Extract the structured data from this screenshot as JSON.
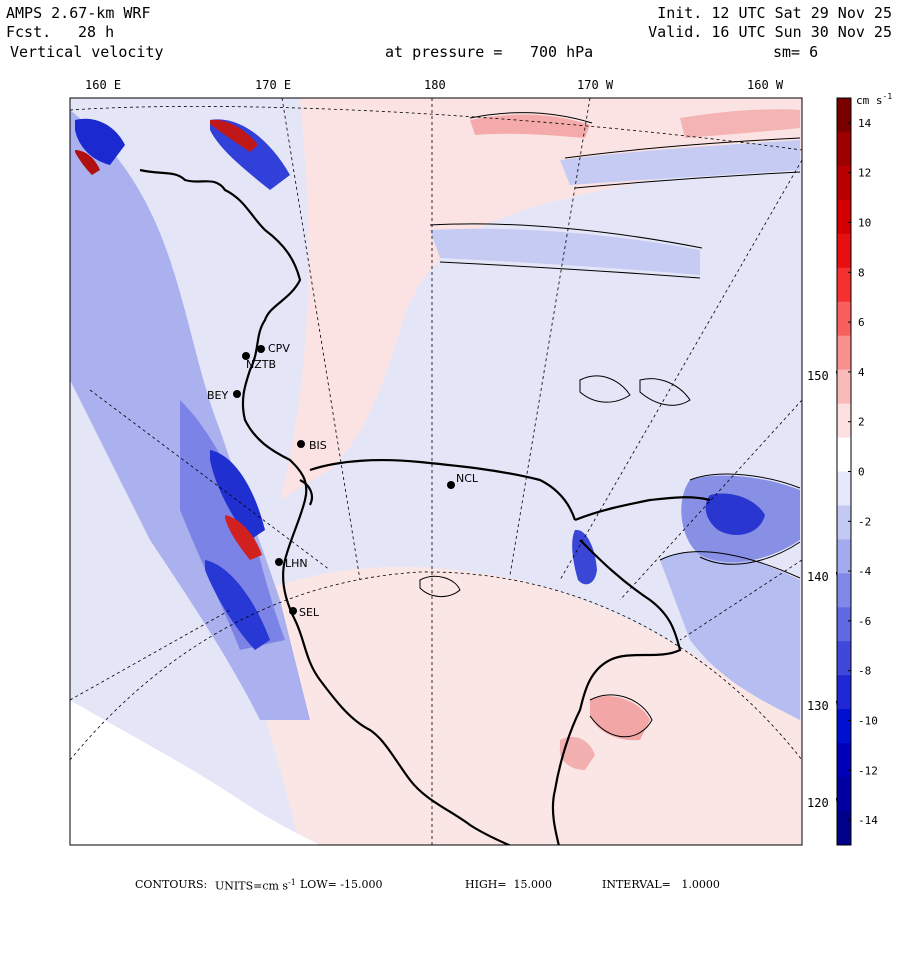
{
  "header": {
    "model": "AMPS 2.67-km WRF",
    "forecast_label": "Fcst.",
    "forecast_value": "28 h",
    "field": "Vertical velocity",
    "init": "Init. 12 UTC Sat 29 Nov 25",
    "valid": "Valid. 16 UTC Sun 30 Nov 25",
    "pressure_label": "at pressure =",
    "pressure_value": "700 hPa",
    "smoothing": "sm= 6"
  },
  "map": {
    "top_longitudes": [
      "160 E",
      "170 E",
      "180",
      "170 W",
      "160 W"
    ],
    "right_longitudes": [
      "150 W",
      "140 W",
      "130 W",
      "120 W"
    ],
    "stations": [
      "CPV",
      "NZTB",
      "BEY",
      "BIS",
      "NCL",
      "LHN",
      "SEL"
    ],
    "positive_color": "#d92020",
    "negative_color": "#2040d0",
    "background_color": "#e4e6f8"
  },
  "colorbar": {
    "units": "cm s",
    "units_exp": "-1",
    "tick_labels": [
      "14",
      "12",
      "10",
      "8",
      "6",
      "4",
      "2",
      "0",
      "-2",
      "-4",
      "-6",
      "-8",
      "-10",
      "-12",
      "-14"
    ],
    "colors": [
      "#7a0000",
      "#9e0000",
      "#b80000",
      "#d20000",
      "#e61010",
      "#f53030",
      "#f86060",
      "#f99090",
      "#fbbaba",
      "#fde0e0",
      "#ffffff",
      "#e6e8fb",
      "#c4c9f4",
      "#a3aaee",
      "#8088e8",
      "#6068e2",
      "#4048dc",
      "#2028d6",
      "#0010d0",
      "#0000b8",
      "#0000a0",
      "#000088"
    ]
  },
  "footer": {
    "contours_label": "CONTOURS:",
    "units_label": "UNITS=cm s",
    "units_exp": "-1",
    "low": "LOW= -15.000",
    "high": "HIGH=  15.000",
    "interval": "INTERVAL=   1.0000"
  }
}
